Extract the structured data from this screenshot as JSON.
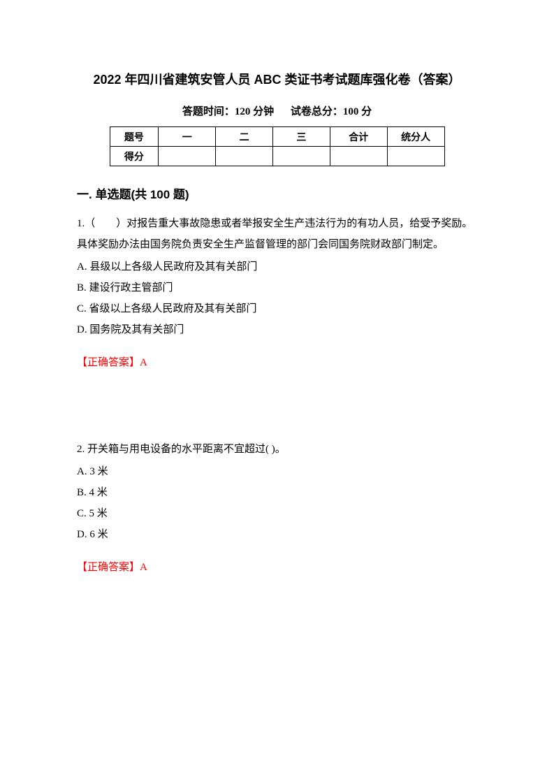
{
  "title": "2022 年四川省建筑安管人员 ABC 类证书考试题库强化卷（答案）",
  "subtitle": {
    "time_label": "答题时间：120 分钟",
    "score_label": "试卷总分：100 分"
  },
  "score_table": {
    "row1": {
      "label": "题号",
      "c1": "一",
      "c2": "二",
      "c3": "三",
      "c4": "合计",
      "c5": "统分人"
    },
    "row2": {
      "label": "得分",
      "c1": "",
      "c2": "",
      "c3": "",
      "c4": "",
      "c5": ""
    }
  },
  "section_title": "一. 单选题(共 100 题)",
  "q1": {
    "text": "1.（　　）对报告重大事故隐患或者举报安全生产违法行为的有功人员，给受予奖励。具体奖励办法由国务院负责安全生产监督管理的部门会同国务院财政部门制定。",
    "a": "A. 县级以上各级人民政府及其有关部门",
    "b": "B. 建设行政主管部门",
    "c": "C. 省级以上各级人民政府及其有关部门",
    "d": "D. 国务院及其有关部门",
    "answer": "【正确答案】A"
  },
  "q2": {
    "text": "2. 开关箱与用电设备的水平距离不宜超过( )。",
    "a": "A. 3 米",
    "b": "B. 4 米",
    "c": "C. 5 米",
    "d": "D. 6 米",
    "answer": "【正确答案】A"
  },
  "colors": {
    "text": "#000000",
    "answer": "#ff0000",
    "background": "#ffffff",
    "table_border": "#000000"
  }
}
